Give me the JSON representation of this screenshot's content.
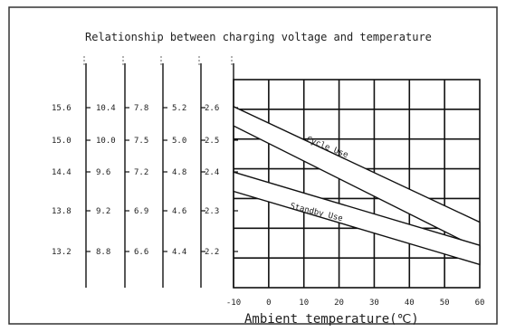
{
  "chart_data": {
    "type": "line",
    "title": "Relationship between charging voltage and temperature",
    "xlabel": "Ambient temperature(℃)",
    "x_ticks": [
      -10,
      0,
      10,
      20,
      30,
      40,
      50,
      60
    ],
    "xlim": [
      -10,
      60
    ],
    "grid": true,
    "voltage_axes": [
      {
        "label": "",
        "ticks": [
          "15.6",
          "15.0",
          "14.4",
          "13.8",
          "13.2"
        ]
      },
      {
        "label": "",
        "ticks": [
          "10.4",
          "10.0",
          "9.6",
          "9.2",
          "8.8"
        ]
      },
      {
        "label": "",
        "ticks": [
          "7.8",
          "7.5",
          "7.2",
          "6.9",
          "6.6"
        ]
      },
      {
        "label": "",
        "ticks": [
          "5.2",
          "5.0",
          "4.8",
          "4.6",
          "4.4"
        ]
      },
      {
        "label": "",
        "ticks": [
          "2.6",
          "2.5",
          "2.4",
          "2.3",
          "2.2"
        ]
      }
    ],
    "series": [
      {
        "name": "Cycle Use",
        "x": [
          -10,
          60
        ],
        "upper": [
          2.6,
          2.3
        ],
        "lower": [
          2.55,
          2.23
        ]
      },
      {
        "name": "Standby Use",
        "x": [
          -10,
          60
        ],
        "upper": [
          2.43,
          2.24
        ],
        "lower": [
          2.38,
          2.19
        ]
      }
    ],
    "annotations": [
      "Cycle Use",
      "Standby Use"
    ],
    "grid_rows": 7
  }
}
